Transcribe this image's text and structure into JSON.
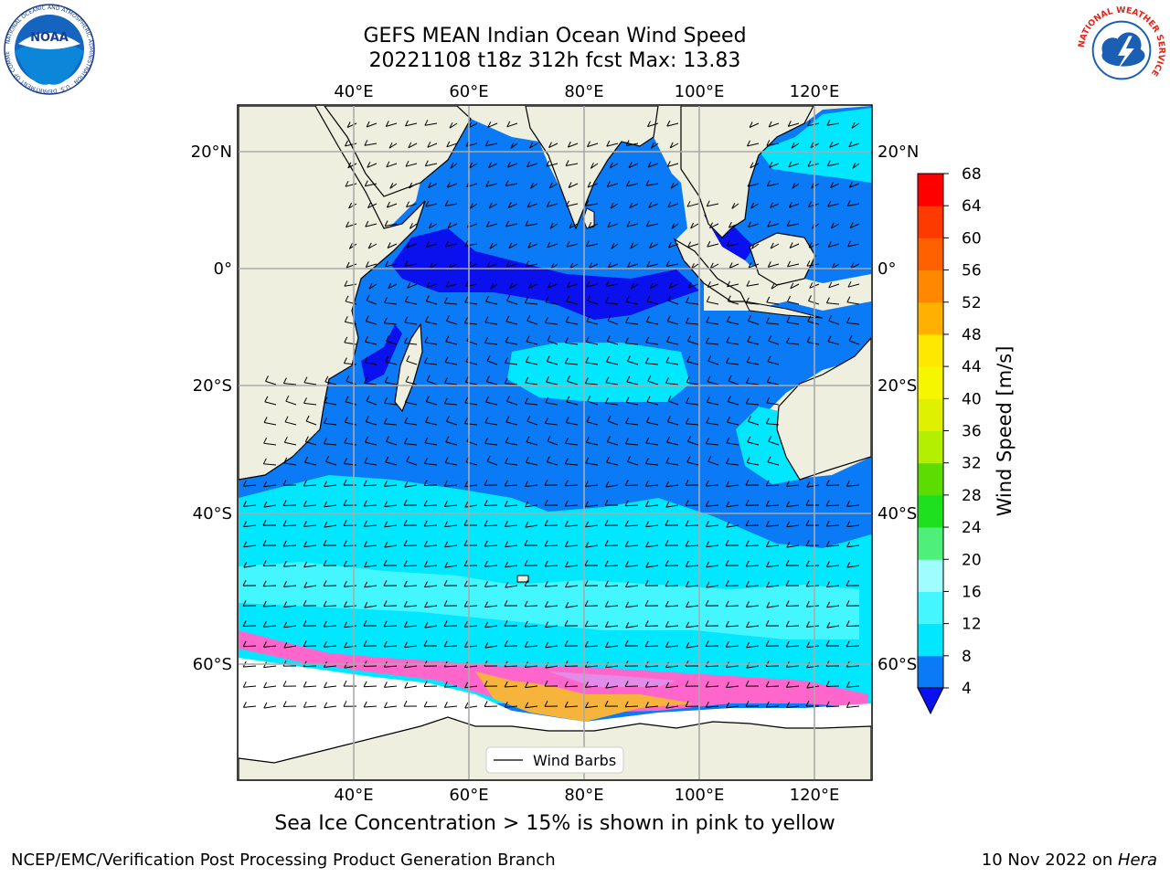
{
  "title": {
    "line1": "GEFS MEAN Indian Ocean Wind Speed",
    "line2": "20221108 t18z 312h fcst   Max: 13.83"
  },
  "map": {
    "lon_range": [
      20,
      130
    ],
    "lat_range": [
      -73,
      27
    ],
    "lon_ticks": [
      "40°E",
      "60°E",
      "80°E",
      "100°E",
      "120°E"
    ],
    "lat_ticks": [
      "20°N",
      "0°",
      "20°S",
      "40°S",
      "60°S"
    ],
    "legend": "Wind Barbs",
    "land_color": "#efefdf",
    "sea_ice_note": "Sea Ice Concentration > 15% is shown in pink to yellow"
  },
  "colorbar": {
    "label": "Wind Speed [m/s]",
    "ticks": [
      "4",
      "8",
      "12",
      "16",
      "20",
      "24",
      "28",
      "32",
      "36",
      "40",
      "44",
      "48",
      "52",
      "56",
      "60",
      "64",
      "68"
    ],
    "colors": [
      "#0a7af7",
      "#00e7ff",
      "#44f6ff",
      "#9ffcff",
      "#4ef07a",
      "#1ee01e",
      "#5cdc00",
      "#b4ee00",
      "#dff000",
      "#f6f600",
      "#ffe800",
      "#ffb000",
      "#ff8800",
      "#ff6000",
      "#ff3a00",
      "#ff0000"
    ],
    "under_color": "#0a10ee",
    "max_value": "13.83"
  },
  "footer": {
    "org": "NCEP/EMC/Verification Post Processing Product Generation Branch",
    "date": "10 Nov 2022 on ",
    "host": "Hera"
  },
  "logos": {
    "noaa": "NOAA",
    "noaa_ring": "NATIONAL OCEANIC AND ATMOSPHERIC ADMINISTRATION · U.S. DEPARTMENT OF COMMERCE",
    "nws_ring": "NATIONAL WEATHER SERVICE"
  }
}
